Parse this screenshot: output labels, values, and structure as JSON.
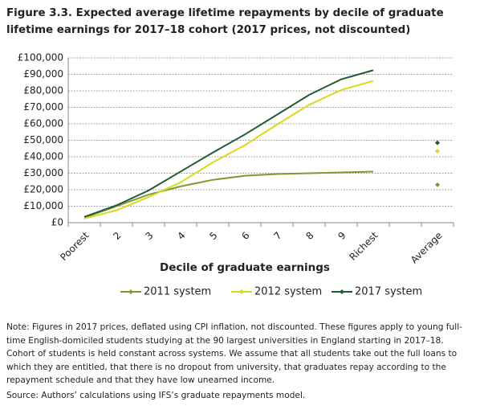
{
  "chart_data": {
    "type": "line",
    "title": "Figure 3.3. Expected average lifetime repayments by decile of graduate lifetime earnings for 2017–18 cohort (2017 prices, not discounted)",
    "x_label": "Decile of graduate earnings",
    "categories": [
      "Poorest",
      "2",
      "3",
      "4",
      "5",
      "6",
      "7",
      "8",
      "9",
      "Richest",
      null,
      "Average"
    ],
    "series": [
      {
        "name": "2011 system",
        "color": "#7f9a2c",
        "values": [
          3000,
          10000,
          17000,
          22000,
          26000,
          28500,
          29500,
          30000,
          30500,
          31000,
          null,
          23000
        ]
      },
      {
        "name": "2012 system",
        "color": "#d9d91c",
        "values": [
          2500,
          7500,
          15500,
          24500,
          36500,
          47000,
          59500,
          71500,
          80500,
          86000,
          null,
          43500
        ]
      },
      {
        "name": "2017 system",
        "color": "#1e5b32",
        "values": [
          3500,
          10500,
          19500,
          31000,
          42500,
          53500,
          65500,
          77500,
          87000,
          92500,
          null,
          48500
        ]
      }
    ],
    "ylim": [
      0,
      100000
    ],
    "yticks": [
      {
        "value": 0,
        "label": "£0"
      },
      {
        "value": 10000,
        "label": "£10,000"
      },
      {
        "value": 20000,
        "label": "£20,000"
      },
      {
        "value": 30000,
        "label": "£30,000"
      },
      {
        "value": 40000,
        "label": "£40,000"
      },
      {
        "value": 50000,
        "label": "£50,000"
      },
      {
        "value": 60000,
        "label": "£60,000"
      },
      {
        "value": 70000,
        "label": "£70,000"
      },
      {
        "value": 80000,
        "label": "£80,000"
      },
      {
        "value": 90000,
        "label": "£90,000"
      },
      {
        "value": 100000,
        "label": "£100,000"
      }
    ],
    "grid": true,
    "legend": "bottom",
    "note": "Note: Figures in 2017 prices, deflated using CPI inflation, not discounted. These figures apply to young full-time English-domiciled students studying at the 90 largest universities in England starting in 2017–18. Cohort of students is held constant across systems. We assume that all students take out the full loans to which they are entitled, that there is no dropout from university, that graduates repay according to the repayment schedule and that they have low unearned income.",
    "source": "Source: Authors’ calculations using IFS’s graduate repayments model."
  }
}
